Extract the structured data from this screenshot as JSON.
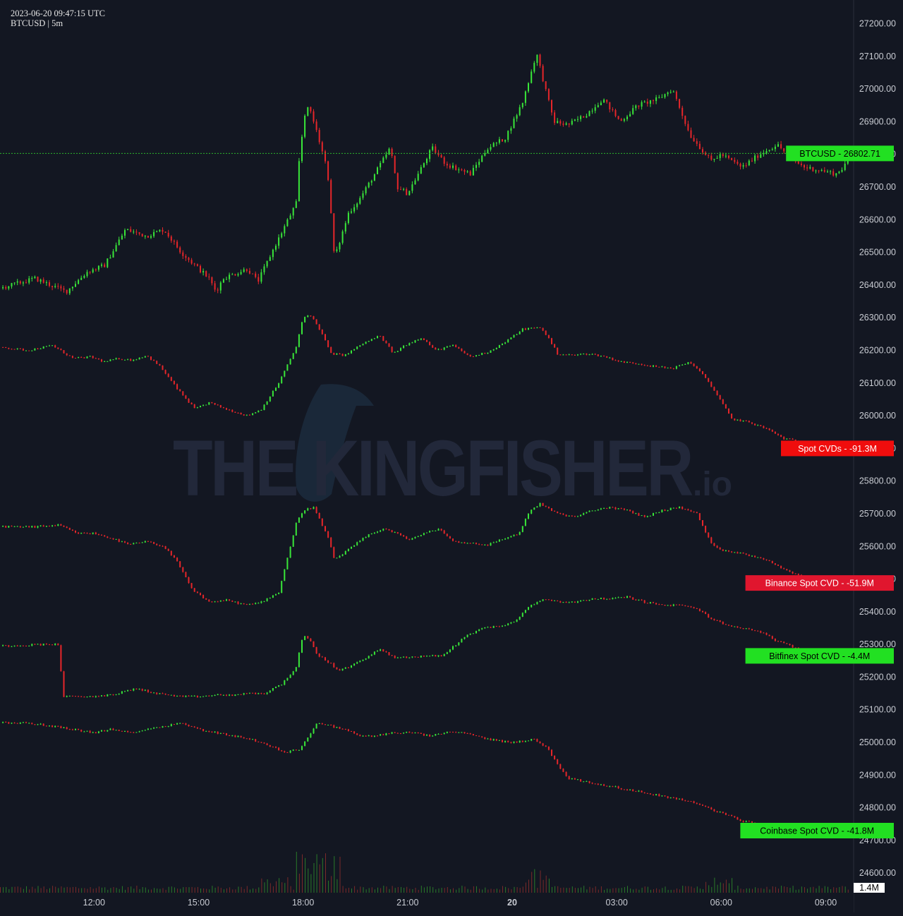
{
  "header": {
    "timestamp": "2023-06-20 09:47:15 UTC",
    "symbol_line": "BTCUSD | 5m"
  },
  "watermark": {
    "brand": "THE KINGFISHER",
    "suffix": ".io"
  },
  "colors": {
    "background": "#131722",
    "up": "#39e639",
    "down": "#e6262a",
    "price_line": "#2db52d",
    "axis_text": "#c9ccd3"
  },
  "tags": [
    {
      "id": "btcusd",
      "label": "BTCUSD",
      "value": "26802.71",
      "color": "#22e022",
      "text_color": "#000000"
    },
    {
      "id": "spot",
      "label": "Spot CVDs",
      "value": "-91.3M",
      "color": "#f00d0d",
      "text_color": "#ffffff"
    },
    {
      "id": "binance",
      "label": "Binance Spot CVD",
      "value": "-51.9M",
      "color": "#e0162e",
      "text_color": "#ffffff"
    },
    {
      "id": "bitfinex",
      "label": "Bitfinex Spot CVD",
      "value": "-4.4M",
      "color": "#22e022",
      "text_color": "#000000"
    },
    {
      "id": "coinbase",
      "label": "Coinbase Spot CVD",
      "value": "-41.8M",
      "color": "#22e022",
      "text_color": "#000000"
    }
  ],
  "volume_tag": {
    "value": "1.4M"
  },
  "chart_data": {
    "type": "line",
    "symbol": "BTCUSD",
    "interval": "5m",
    "x_ticks": [
      "12:00",
      "15:00",
      "18:00",
      "21:00",
      "20",
      "03:00",
      "06:00",
      "09:00"
    ],
    "x_tick_hours": [
      12,
      15,
      18,
      21,
      24,
      27,
      30,
      33
    ],
    "x_range_hours": [
      9.3,
      33.8
    ],
    "y_ticks": [
      27200,
      27100,
      27000,
      26900,
      26800,
      26700,
      26600,
      26500,
      26400,
      26300,
      26200,
      26100,
      26000,
      25900,
      25800,
      25700,
      25600,
      25500,
      25400,
      25300,
      25200,
      25100,
      25000,
      24900,
      24800,
      24700,
      24600
    ],
    "ylim": [
      24540,
      27240
    ],
    "last_price": 26802.71,
    "grid": false,
    "series": [
      {
        "name": "BTCUSD",
        "x": [
          9.3,
          10.3,
          11.2,
          11.8,
          12.3,
          12.9,
          13.5,
          14.0,
          14.5,
          15.3,
          15.5,
          15.7,
          16.4,
          16.7,
          17.1,
          17.8,
          17.9,
          18.1,
          18.4,
          18.7,
          18.9,
          19.3,
          19.6,
          20.0,
          20.5,
          20.7,
          21.0,
          21.4,
          21.7,
          22.1,
          22.8,
          23.3,
          23.8,
          24.3,
          24.7,
          25.0,
          25.2,
          25.6,
          26.1,
          26.6,
          27.1,
          27.6,
          28.2,
          28.6,
          29.1,
          29.7,
          30.0,
          30.6,
          31.1,
          31.6,
          32.1,
          32.4,
          32.9,
          33.3,
          33.5,
          33.7
        ],
        "y": [
          26390,
          26420,
          26380,
          26440,
          26460,
          26570,
          26550,
          26570,
          26500,
          26420,
          26380,
          26420,
          26450,
          26410,
          26500,
          26650,
          26800,
          26960,
          26870,
          26750,
          26480,
          26620,
          26660,
          26730,
          26820,
          26700,
          26680,
          26760,
          26820,
          26770,
          26740,
          26820,
          26850,
          26960,
          27110,
          26980,
          26900,
          26890,
          26920,
          26970,
          26900,
          26950,
          26970,
          27000,
          26860,
          26780,
          26800,
          26760,
          26800,
          26830,
          26780,
          26760,
          26750,
          26740,
          26760,
          26802.71
        ]
      },
      {
        "name": "Spot CVDs",
        "x": [
          9.3,
          10.1,
          10.8,
          11.4,
          11.9,
          12.3,
          12.7,
          13.1,
          13.5,
          13.9,
          14.4,
          14.9,
          15.3,
          15.8,
          16.4,
          16.8,
          17.3,
          17.8,
          18.0,
          18.2,
          18.5,
          18.8,
          19.2,
          19.7,
          20.2,
          20.6,
          20.9,
          21.4,
          21.8,
          22.3,
          22.8,
          23.3,
          23.8,
          24.3,
          24.8,
          25.0,
          25.3,
          25.7,
          26.2,
          26.7,
          27.1,
          27.6,
          28.1,
          28.6,
          29.1,
          29.6,
          29.9,
          30.3,
          30.8,
          31.3,
          31.8,
          32.3,
          32.8,
          33.3,
          33.5,
          33.7
        ],
        "y": [
          26210,
          26200,
          26215,
          26175,
          26180,
          26165,
          26175,
          26170,
          26185,
          26150,
          26080,
          26020,
          26040,
          26020,
          26000,
          26020,
          26100,
          26210,
          26300,
          26310,
          26260,
          26190,
          26185,
          26220,
          26245,
          26190,
          26215,
          26240,
          26200,
          26215,
          26180,
          26195,
          26225,
          26265,
          26270,
          26245,
          26190,
          26185,
          26190,
          26180,
          26165,
          26160,
          26150,
          26145,
          26165,
          26110,
          26060,
          25990,
          25980,
          25960,
          25930,
          25920,
          25900,
          25880,
          25895,
          25900
        ]
      },
      {
        "name": "Binance Spot CVD",
        "x": [
          9.3,
          10.3,
          11.0,
          11.5,
          12.0,
          12.5,
          13.0,
          13.5,
          14.0,
          14.4,
          14.8,
          15.3,
          15.8,
          16.4,
          16.8,
          17.3,
          17.8,
          18.0,
          18.3,
          18.7,
          18.9,
          19.3,
          19.8,
          20.3,
          20.7,
          21.0,
          21.5,
          21.9,
          22.3,
          22.8,
          23.3,
          23.8,
          24.2,
          24.5,
          24.8,
          25.3,
          25.8,
          26.3,
          26.8,
          27.3,
          27.8,
          28.3,
          28.8,
          29.3,
          29.7,
          30.0,
          30.5,
          30.9,
          31.3,
          31.8,
          32.3,
          32.8,
          33.3,
          33.5,
          33.7
        ],
        "y": [
          25660,
          25660,
          25665,
          25640,
          25640,
          25625,
          25605,
          25615,
          25600,
          25550,
          25470,
          25430,
          25435,
          25420,
          25430,
          25460,
          25670,
          25710,
          25720,
          25630,
          25560,
          25590,
          25630,
          25655,
          25640,
          25620,
          25640,
          25655,
          25615,
          25610,
          25605,
          25625,
          25640,
          25710,
          25730,
          25700,
          25690,
          25710,
          25720,
          25710,
          25690,
          25710,
          25720,
          25700,
          25610,
          25590,
          25580,
          25570,
          25560,
          25530,
          25510,
          25500,
          25490,
          25480,
          25488
        ]
      },
      {
        "name": "Bitfinex Spot CVD",
        "x": [
          9.3,
          10.5,
          11.0,
          11.1,
          11.8,
          12.5,
          13.2,
          13.8,
          14.5,
          15.0,
          15.5,
          16.0,
          16.5,
          16.9,
          17.4,
          17.8,
          18.0,
          18.2,
          18.4,
          18.8,
          19.0,
          19.3,
          19.8,
          20.2,
          20.6,
          21.0,
          21.5,
          22.0,
          22.6,
          23.1,
          23.6,
          24.1,
          24.5,
          25.0,
          25.3,
          25.8,
          26.3,
          26.8,
          27.3,
          27.8,
          28.3,
          28.8,
          29.3,
          29.7,
          30.1,
          30.6,
          31.1,
          31.6,
          32.1,
          32.6,
          33.1,
          33.5,
          33.7
        ],
        "y": [
          25295,
          25300,
          25300,
          25140,
          25140,
          25145,
          25165,
          25150,
          25140,
          25140,
          25145,
          25145,
          25150,
          25150,
          25180,
          25230,
          25330,
          25310,
          25270,
          25240,
          25220,
          25230,
          25260,
          25285,
          25260,
          25260,
          25265,
          25265,
          25320,
          25350,
          25355,
          25370,
          25420,
          25440,
          25430,
          25430,
          25440,
          25440,
          25445,
          25430,
          25420,
          25420,
          25410,
          25380,
          25360,
          25350,
          25340,
          25310,
          25290,
          25270,
          25265,
          25262,
          25265
        ]
      },
      {
        "name": "Coinbase Spot CVD",
        "x": [
          9.3,
          10.0,
          10.8,
          11.4,
          12.0,
          12.5,
          13.0,
          13.5,
          14.0,
          14.5,
          15.0,
          15.5,
          16.0,
          16.5,
          17.0,
          17.5,
          17.9,
          18.1,
          18.4,
          18.8,
          19.2,
          19.6,
          20.1,
          20.6,
          21.1,
          21.6,
          22.1,
          22.6,
          23.1,
          23.6,
          24.1,
          24.6,
          25.0,
          25.2,
          25.6,
          26.1,
          26.6,
          27.1,
          27.6,
          28.1,
          28.6,
          29.1,
          29.6,
          30.1,
          30.6,
          31.1,
          31.6,
          32.1,
          32.6,
          33.1,
          33.5,
          33.7
        ],
        "y": [
          25060,
          25060,
          25050,
          25040,
          25030,
          25040,
          25030,
          25040,
          25050,
          25060,
          25040,
          25030,
          25020,
          25010,
          24990,
          24970,
          24980,
          25010,
          25060,
          25050,
          25040,
          25020,
          25020,
          25030,
          25030,
          25020,
          25030,
          25030,
          25015,
          25005,
          25000,
          25010,
          24985,
          24950,
          24890,
          24880,
          24870,
          24860,
          24850,
          24840,
          24830,
          24820,
          24800,
          24780,
          24760,
          24750,
          24735,
          24725,
          24710,
          24725,
          24728,
          24730
        ]
      }
    ],
    "volume": {
      "name": "Volume",
      "last": "1.4M"
    }
  }
}
